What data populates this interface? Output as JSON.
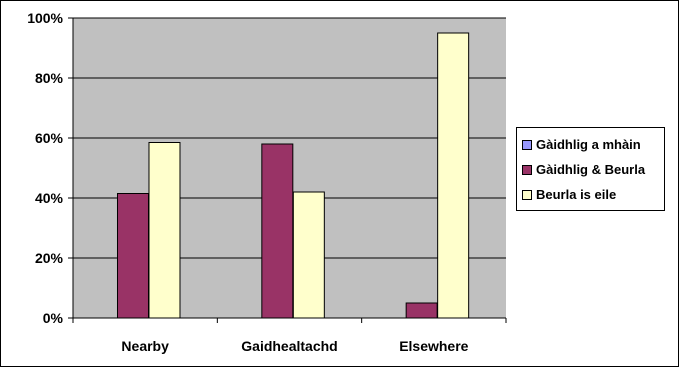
{
  "chart_data": {
    "type": "bar",
    "categories": [
      "Nearby",
      "Gaidhealtachd",
      "Elsewhere"
    ],
    "series": [
      {
        "name": "Gàidhlig a mhàin",
        "values": [
          0,
          0,
          0
        ],
        "color": "#9999ff"
      },
      {
        "name": "Gàidhlig & Beurla",
        "values": [
          41.5,
          58,
          5
        ],
        "color": "#993366"
      },
      {
        "name": "Beurla is eile",
        "values": [
          58.5,
          42,
          95
        ],
        "color": "#ffffcc"
      }
    ],
    "yticks": [
      "0%",
      "20%",
      "40%",
      "60%",
      "80%",
      "100%"
    ],
    "ylim": [
      0,
      100
    ],
    "grid": true,
    "plot_background": "#c0c0c0",
    "legend_position": "right",
    "title": "",
    "xlabel": "",
    "ylabel": ""
  }
}
